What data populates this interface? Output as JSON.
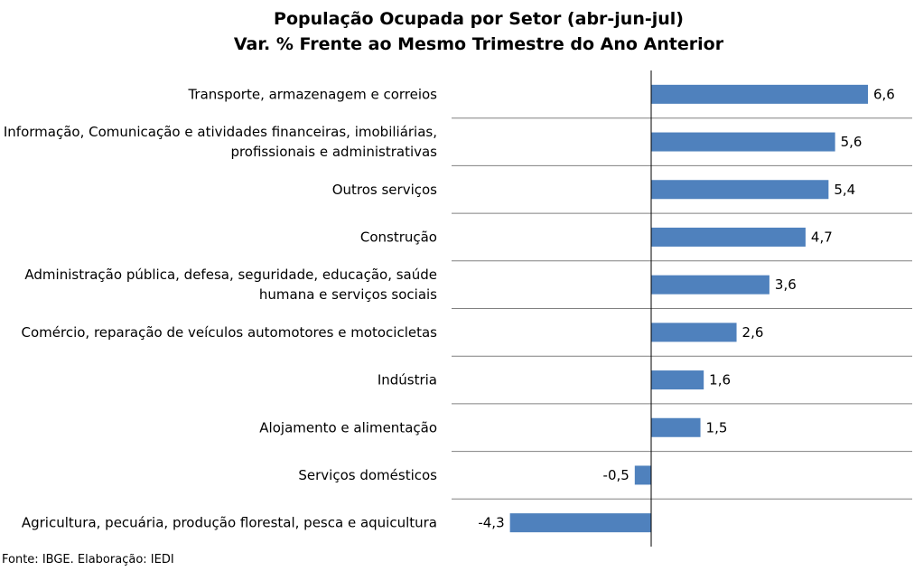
{
  "chart_data": {
    "type": "bar",
    "orientation": "horizontal",
    "title": "População Ocupada por Setor (abr-jun-jul)",
    "subtitle": "Var. % Frente ao Mesmo Trimestre do Ano Anterior",
    "categories": [
      [
        "Transporte, armazenagem e correios"
      ],
      [
        "Informação, Comunicação e atividades financeiras, imobiliárias,",
        "profissionais e administrativas"
      ],
      [
        "Outros serviços"
      ],
      [
        "Construção"
      ],
      [
        "Administração pública, defesa, seguridade, educação, saúde",
        "humana e serviços sociais"
      ],
      [
        "Comércio, reparação de veículos automotores e motocicletas"
      ],
      [
        "Indústria"
      ],
      [
        "Alojamento e alimentação"
      ],
      [
        "Serviços domésticos"
      ],
      [
        "Agricultura, pecuária, produção florestal, pesca e aquicultura"
      ]
    ],
    "values": [
      6.6,
      5.6,
      5.4,
      4.7,
      3.6,
      2.6,
      1.6,
      1.5,
      -0.5,
      -4.3
    ],
    "value_labels": [
      "6,6",
      "5,6",
      "5,4",
      "4,7",
      "3,6",
      "2,6",
      "1,6",
      "1,5",
      "-0,5",
      "-4,3"
    ],
    "xlim": [
      -4.3,
      6.6
    ],
    "grid": "horizontal separators between categories",
    "legend": "none",
    "bar_color": "#4f81bd",
    "source": "Fonte: IBGE. Elaboração: IEDI"
  }
}
